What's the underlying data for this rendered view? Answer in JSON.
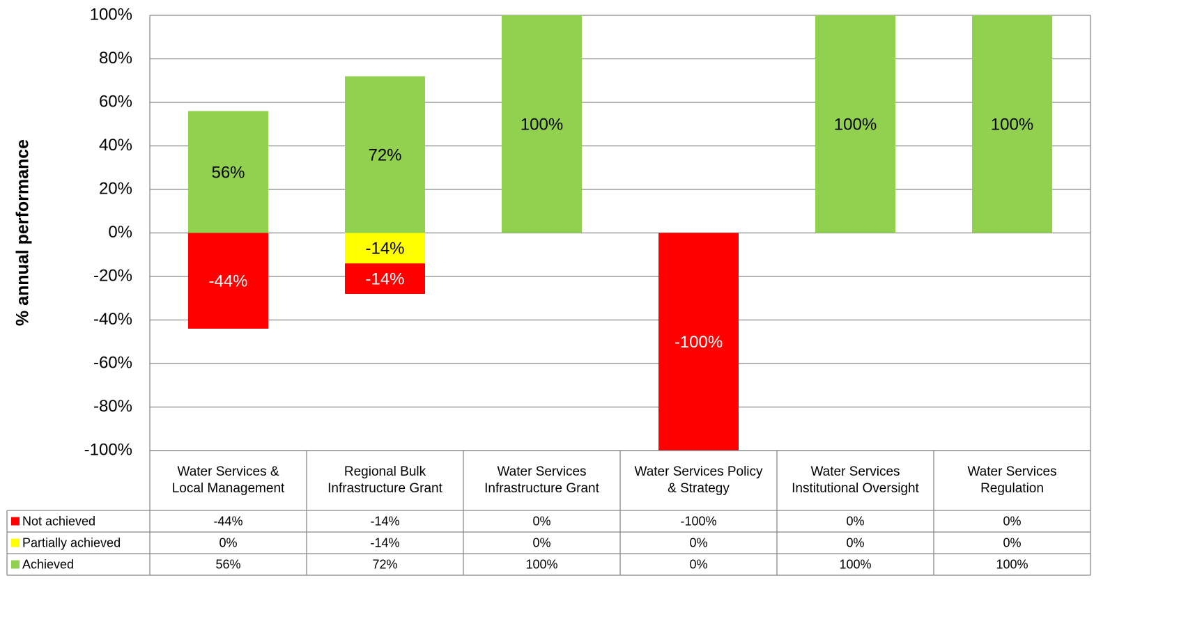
{
  "chart_data": {
    "type": "bar",
    "stacked": true,
    "y_label": "% annual performance",
    "categories": [
      "Water Services & Local Management",
      "Regional Bulk Infrastructure Grant",
      "Water Services Infrastructure Grant",
      "Water Services Policy & Strategy",
      "Water Services Institutional Oversight",
      "Water Services Regulation"
    ],
    "series": [
      {
        "name": "Not achieved",
        "color": "#ff0000",
        "label_color": "#ffffff",
        "values": [
          -44,
          -14,
          0,
          -100,
          0,
          0
        ],
        "value_labels": [
          "-44%",
          "-14%",
          "0%",
          "-100%",
          "0%",
          "0%"
        ]
      },
      {
        "name": "Partially achieved",
        "color": "#ffff00",
        "label_color": "#000000",
        "values": [
          0,
          -14,
          0,
          0,
          0,
          0
        ],
        "value_labels": [
          "0%",
          "-14%",
          "0%",
          "0%",
          "0%",
          "0%"
        ]
      },
      {
        "name": "Achieved",
        "color": "#92d050",
        "label_color": "#000000",
        "values": [
          56,
          72,
          100,
          0,
          100,
          100
        ],
        "value_labels": [
          "56%",
          "72%",
          "100%",
          "0%",
          "100%",
          "100%"
        ]
      }
    ],
    "ylim": [
      -100,
      100
    ],
    "yticks": [
      {
        "value": -100,
        "label": "-100%"
      },
      {
        "value": -80,
        "label": "-80%"
      },
      {
        "value": -60,
        "label": "-60%"
      },
      {
        "value": -40,
        "label": "-40%"
      },
      {
        "value": -20,
        "label": "-20%"
      },
      {
        "value": 0,
        "label": "0%"
      },
      {
        "value": 20,
        "label": "20%"
      },
      {
        "value": 40,
        "label": "40%"
      },
      {
        "value": 60,
        "label": "60%"
      },
      {
        "value": 80,
        "label": "80%"
      },
      {
        "value": 100,
        "label": "100%"
      }
    ],
    "grid": true,
    "data_table": true
  }
}
